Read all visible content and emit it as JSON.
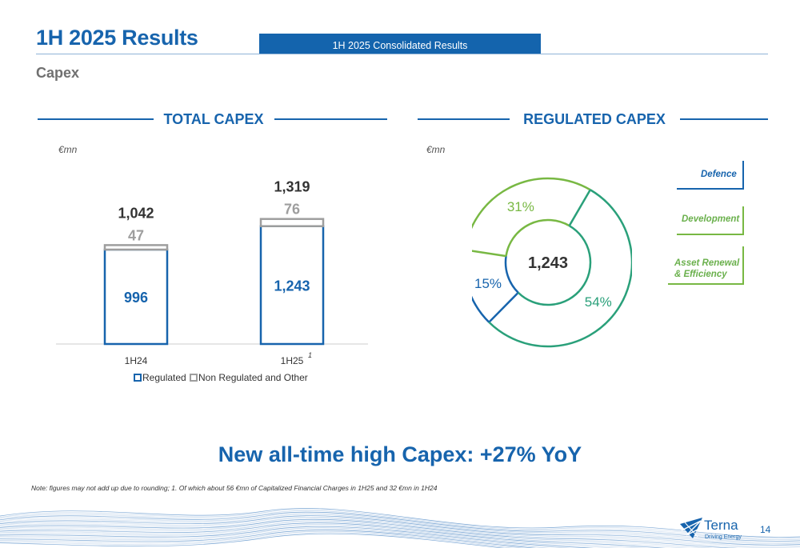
{
  "header": {
    "title": "1H 2025 Results",
    "tab_label": "1H 2025 Consolidated Results",
    "subtitle": "Capex"
  },
  "sections": {
    "total_capex": "TOTAL CAPEX",
    "regulated_capex": "REGULATED CAPEX"
  },
  "units": {
    "total": "€mn",
    "regulated": "€mn"
  },
  "chart_data": [
    {
      "type": "bar",
      "stacked": true,
      "title": "TOTAL CAPEX",
      "unit": "€mn",
      "categories": [
        "1H24",
        "1H25"
      ],
      "category_footnotes": [
        "",
        "1"
      ],
      "series": [
        {
          "name": "Regulated",
          "values": [
            996,
            1243
          ],
          "labels": [
            "996",
            "1,243"
          ],
          "color": "#1764ad"
        },
        {
          "name": "Non Regulated and Other",
          "values": [
            47,
            76
          ],
          "labels": [
            "47",
            "76"
          ],
          "color": "#9e9e9e"
        }
      ],
      "totals": [
        1042,
        1319
      ],
      "total_labels": [
        "1,042",
        "1,319"
      ],
      "legend_placement": "bottom"
    },
    {
      "type": "pie",
      "donut": true,
      "title": "REGULATED CAPEX",
      "unit": "€mn",
      "center_label": "1,243",
      "slices": [
        {
          "name": "Defence",
          "value": 15,
          "label": "15%",
          "color": "#1764ad"
        },
        {
          "name": "Development",
          "value": 31,
          "label": "31%",
          "color": "#78b843"
        },
        {
          "name": "Asset Renewal & Efficiency",
          "value": 54,
          "label": "54%",
          "color": "#2aa07a"
        }
      ],
      "legend": [
        {
          "text": "Defence",
          "color": "#1764ad"
        },
        {
          "text": "Development",
          "color": "#78b843"
        },
        {
          "text": "Asset Renewal\n& Efficiency",
          "color": "#6ab04c"
        }
      ],
      "legend_placement": "right"
    }
  ],
  "headline": "New all-time high Capex: +27% YoY",
  "note": "Note: figures may not add up due to rounding; 1. Of which about 56 €mn of Capitalized Financial Charges in 1H25 and 32 €mn in 1H24",
  "logo": {
    "name": "Terna",
    "tagline": "Driving Energy"
  },
  "page_number": "14"
}
